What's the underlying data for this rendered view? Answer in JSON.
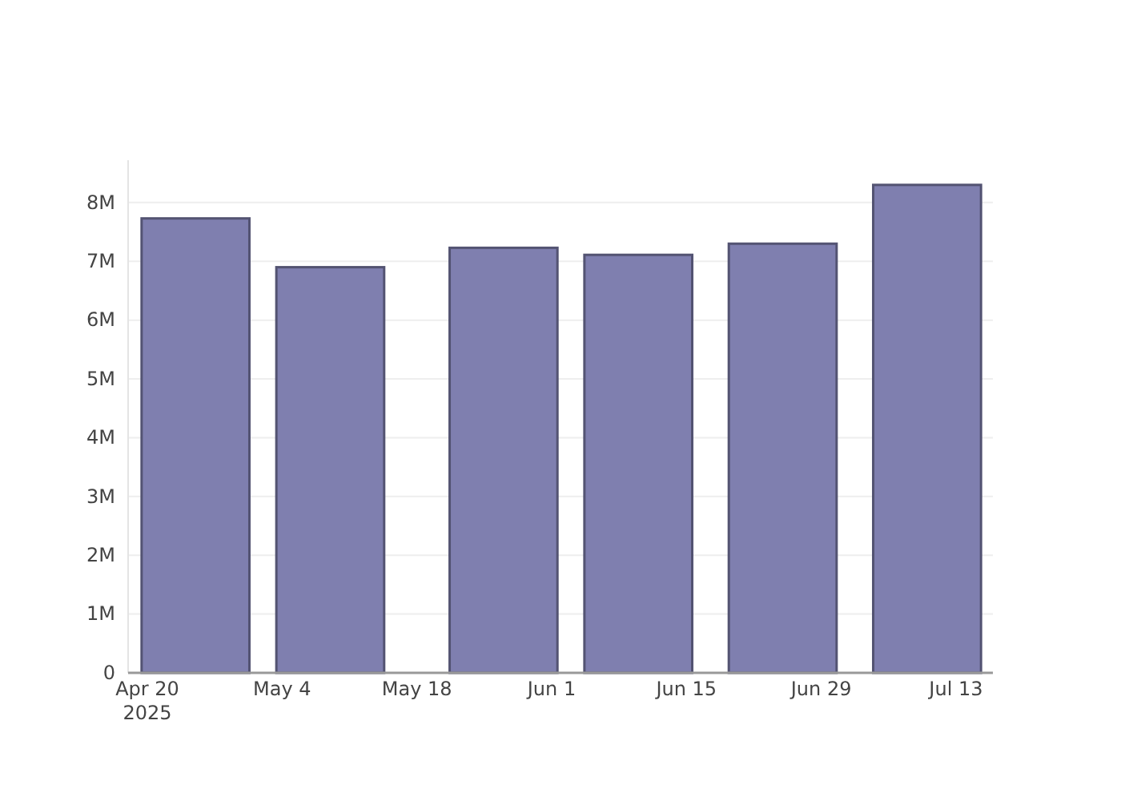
{
  "chart_data": {
    "type": "bar",
    "x": [
      "2025-04-25",
      "2025-05-09",
      "2025-05-27",
      "2025-06-10",
      "2025-06-25",
      "2025-07-10"
    ],
    "values": [
      7730000,
      6900000,
      7230000,
      7110000,
      7300000,
      8300000
    ],
    "color": "#7f7faf",
    "xlim": [
      "2025-04-18",
      "2025-07-16T20:00"
    ],
    "xticks": [
      {
        "value": "2025-04-20",
        "label": "Apr 20\n2025"
      },
      {
        "value": "2025-05-04",
        "label": "May 4"
      },
      {
        "value": "2025-05-18",
        "label": "May 18"
      },
      {
        "value": "2025-06-01",
        "label": "Jun 1"
      },
      {
        "value": "2025-06-15",
        "label": "Jun 15"
      },
      {
        "value": "2025-06-29",
        "label": "Jun 29"
      },
      {
        "value": "2025-07-13",
        "label": "Jul 13"
      }
    ],
    "ylim": [
      0,
      8720000
    ],
    "yticks": [
      0,
      {
        "value": 1000000,
        "label": "1M"
      },
      {
        "value": 2000000,
        "label": "2M"
      },
      {
        "value": 3000000,
        "label": "3M"
      },
      {
        "value": 4000000,
        "label": "4M"
      },
      {
        "value": 5000000,
        "label": "5M"
      },
      {
        "value": 6000000,
        "label": "6M"
      },
      {
        "value": 7000000,
        "label": "7M"
      },
      {
        "value": 8000000,
        "label": "8M"
      }
    ],
    "grid": "y"
  }
}
